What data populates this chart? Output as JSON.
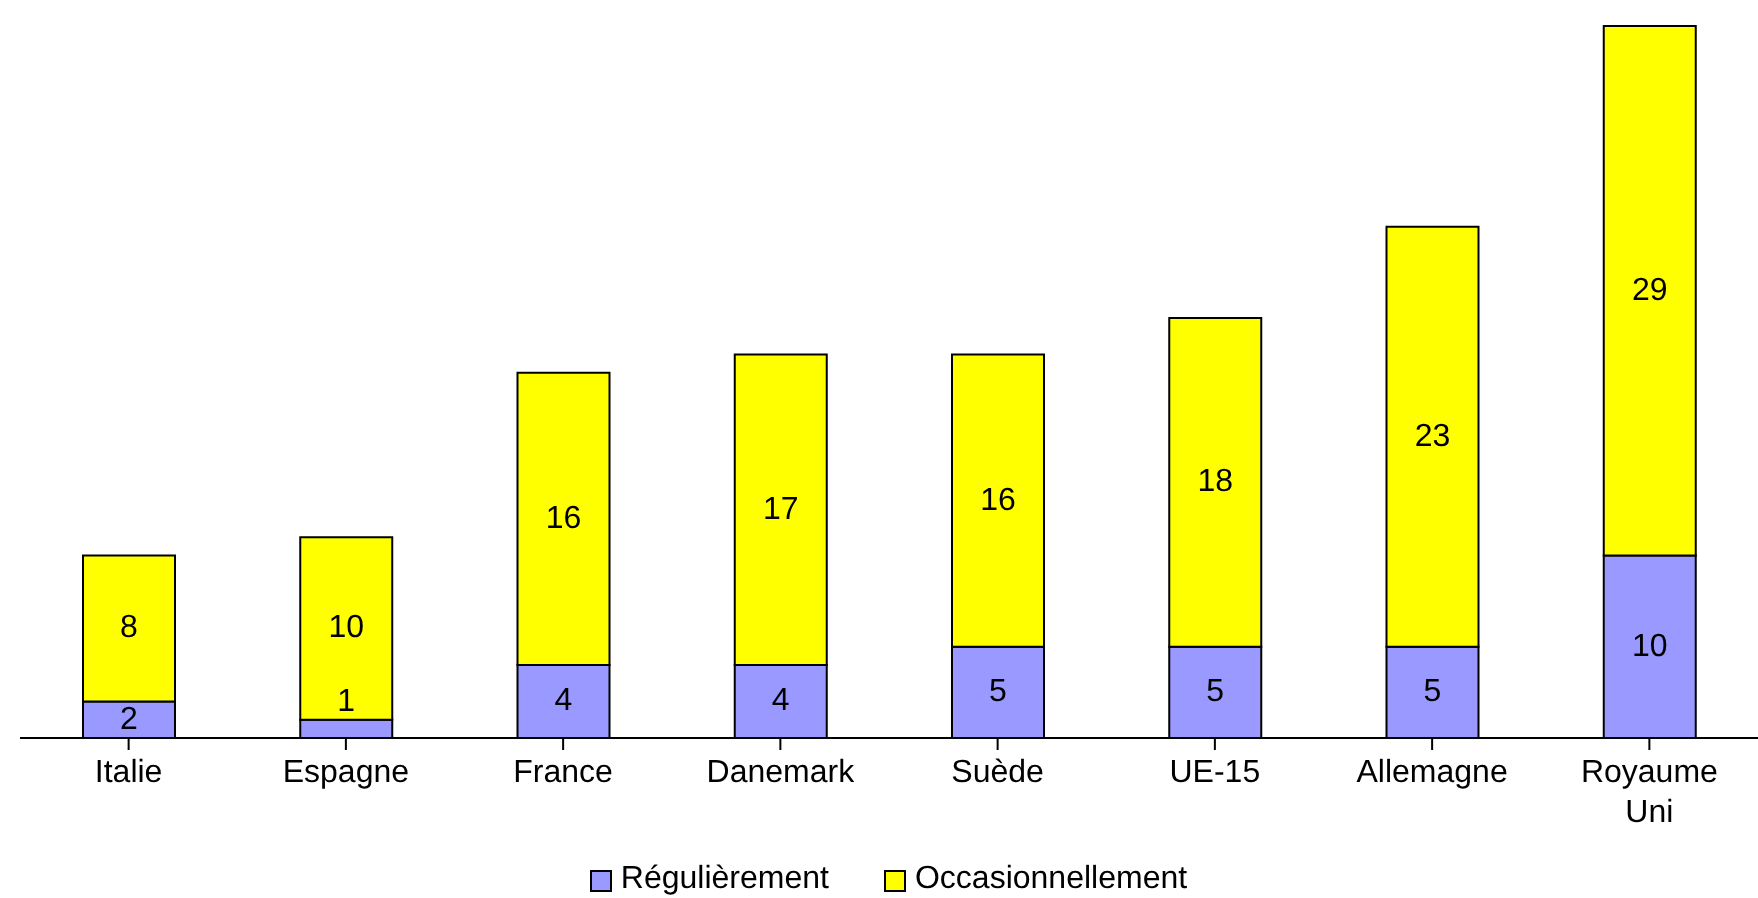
{
  "chart_data": {
    "type": "bar",
    "stacked": true,
    "data_labels": true,
    "legend": "bottom",
    "categories": [
      "Italie",
      "Espagne",
      "France",
      "Danemark",
      "Suède",
      "UE-15",
      "Allemagne",
      "Royaume Uni"
    ],
    "series": [
      {
        "name": "Régulièrement",
        "color": "#9999ff",
        "values": [
          2,
          1,
          4,
          4,
          5,
          5,
          5,
          10
        ]
      },
      {
        "name": "Occasionnellement",
        "color": "#ffff00",
        "values": [
          8,
          10,
          16,
          17,
          16,
          18,
          23,
          29
        ]
      }
    ]
  }
}
